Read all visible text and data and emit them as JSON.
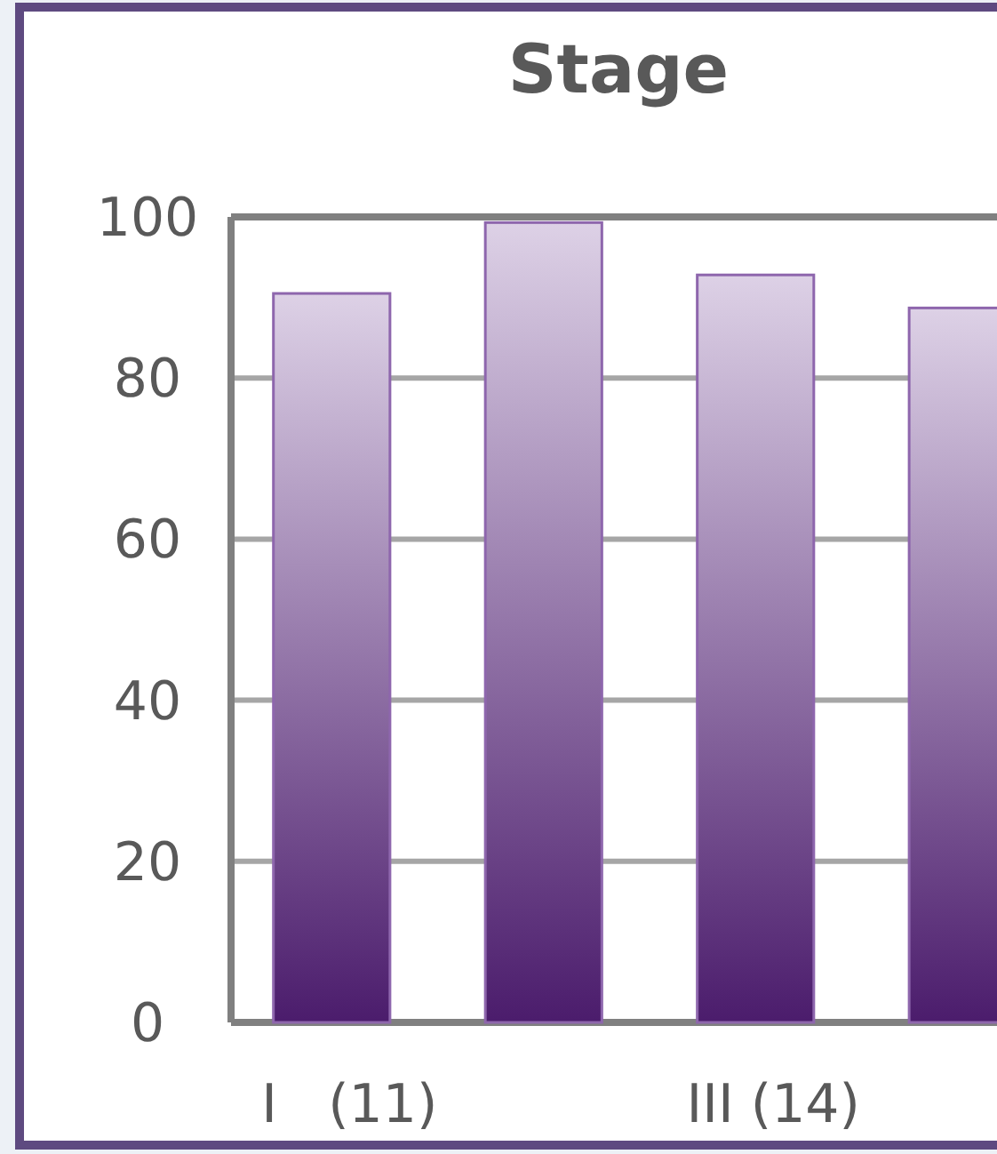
{
  "chart_data": {
    "type": "bar",
    "title": "Stage",
    "categories": [
      "I   (11)",
      null,
      "III (14)",
      null
    ],
    "values": [
      90.5,
      99.3,
      92.8,
      88.7
    ],
    "color": "#8e66ad",
    "ylim": [
      0,
      100
    ],
    "yticks": [
      0,
      20,
      40,
      60,
      80,
      100
    ],
    "grid": "y"
  }
}
